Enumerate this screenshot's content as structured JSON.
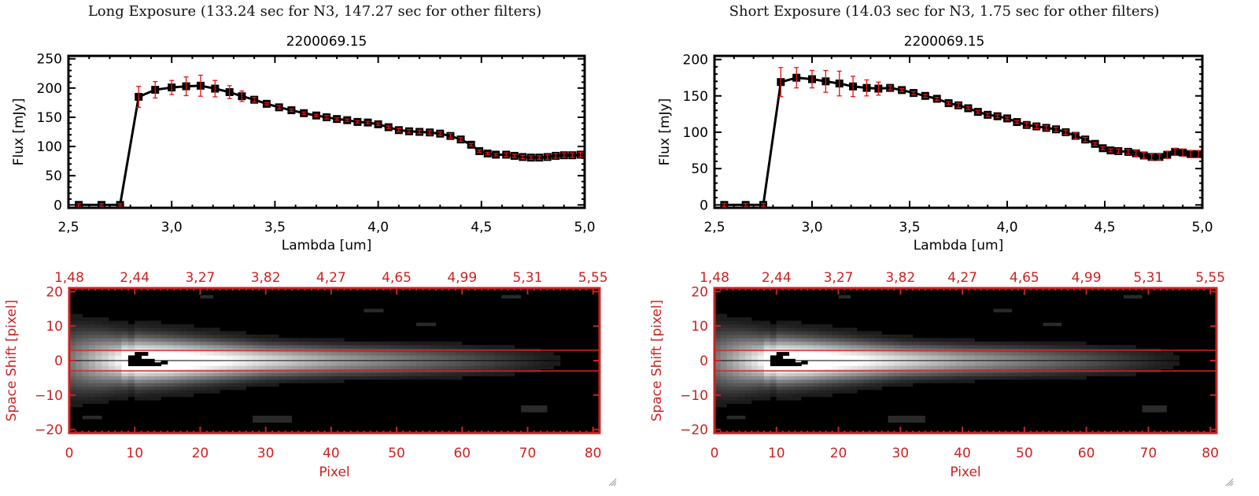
{
  "colors": {
    "axis_black": "#000000",
    "image_axis_red": "#cc2222",
    "errorbar_red": "#ee1111",
    "extraction_line_red": "#dd2222",
    "center_line": "#000000"
  },
  "panels": [
    {
      "id": "long",
      "exposure_title": "Long Exposure (133.24 sec for N3, 147.27 sec for other filters)",
      "object_id": "2200069.15"
    },
    {
      "id": "short",
      "exposure_title": "Short Exposure (14.03 sec for N3, 1.75 sec for other filters)",
      "object_id": "2200069.15"
    }
  ],
  "chart_data": [
    {
      "type": "line",
      "panel": "long",
      "title": "2200069.15",
      "xlabel": "Lambda [um]",
      "ylabel": "Flux [mJy]",
      "xlim": [
        2.5,
        5.0
      ],
      "ylim": [
        -5,
        255
      ],
      "xticks": [
        "2.5",
        "3.0",
        "3.5",
        "4.0",
        "4.5",
        "5.0"
      ],
      "yticks": [
        "0",
        "50",
        "100",
        "150",
        "200",
        "250"
      ],
      "grid": false,
      "series": [
        {
          "name": "flux",
          "marker": "square",
          "x": [
            2.55,
            2.66,
            2.75,
            2.84,
            2.92,
            3.0,
            3.07,
            3.14,
            3.21,
            3.28,
            3.34,
            3.4,
            3.46,
            3.52,
            3.58,
            3.64,
            3.7,
            3.75,
            3.8,
            3.85,
            3.9,
            3.95,
            4.0,
            4.05,
            4.1,
            4.15,
            4.2,
            4.25,
            4.3,
            4.35,
            4.4,
            4.45,
            4.49,
            4.53,
            4.57,
            4.62,
            4.66,
            4.7,
            4.74,
            4.78,
            4.82,
            4.86,
            4.9,
            4.94,
            4.98
          ],
          "y": [
            0,
            0,
            0,
            185,
            197,
            201,
            203,
            204,
            199,
            193,
            186,
            180,
            173,
            167,
            162,
            157,
            153,
            150,
            147,
            145,
            142,
            141,
            138,
            133,
            128,
            126,
            125,
            124,
            122,
            118,
            112,
            103,
            92,
            88,
            86,
            86,
            84,
            82,
            81,
            81,
            82,
            84,
            85,
            85,
            86
          ],
          "yerr": [
            2,
            2,
            2,
            18,
            14,
            12,
            16,
            18,
            14,
            11,
            9,
            4,
            2,
            3,
            2,
            2,
            2,
            3,
            2,
            2,
            2,
            2,
            2,
            2,
            3,
            3,
            3,
            3,
            3,
            4,
            3,
            2,
            2,
            2,
            2,
            3,
            3,
            3,
            3,
            3,
            4,
            4,
            4,
            4,
            4
          ]
        }
      ]
    },
    {
      "type": "heatmap",
      "panel": "long",
      "xlabel": "Pixel",
      "ylabel": "Space Shift [pixel]",
      "xlim": [
        0,
        81
      ],
      "ylim": [
        -21,
        21
      ],
      "xticks": [
        "0",
        "10",
        "20",
        "30",
        "40",
        "50",
        "60",
        "70",
        "80"
      ],
      "yticks": [
        "-20",
        "-10",
        "0",
        "10",
        "20"
      ],
      "top_axis_label_values": [
        "1.48",
        "2.44",
        "3.27",
        "3.82",
        "4.27",
        "4.65",
        "4.99",
        "5.31",
        "5.55"
      ],
      "extraction_aperture": [
        -3,
        3
      ],
      "center_line": 0,
      "description": "2D spectral image: bright trace along y=0 peaking near pixel 9-14, fading to pixel ~77"
    },
    {
      "type": "line",
      "panel": "short",
      "title": "2200069.15",
      "xlabel": "Lambda [um]",
      "ylabel": "Flux [mJy]",
      "xlim": [
        2.5,
        5.0
      ],
      "ylim": [
        -4,
        205
      ],
      "xticks": [
        "2.5",
        "3.0",
        "3.5",
        "4.0",
        "4.5",
        "5.0"
      ],
      "yticks": [
        "0",
        "50",
        "100",
        "150",
        "200"
      ],
      "grid": false,
      "series": [
        {
          "name": "flux",
          "marker": "square",
          "x": [
            2.55,
            2.66,
            2.75,
            2.84,
            2.92,
            3.0,
            3.07,
            3.14,
            3.21,
            3.28,
            3.34,
            3.4,
            3.46,
            3.52,
            3.58,
            3.64,
            3.7,
            3.75,
            3.8,
            3.85,
            3.9,
            3.95,
            4.0,
            4.05,
            4.1,
            4.15,
            4.2,
            4.25,
            4.3,
            4.35,
            4.4,
            4.45,
            4.49,
            4.53,
            4.57,
            4.62,
            4.66,
            4.7,
            4.74,
            4.78,
            4.82,
            4.86,
            4.9,
            4.94,
            4.98
          ],
          "y": [
            0,
            0,
            0,
            169,
            175,
            173,
            170,
            167,
            163,
            161,
            160,
            161,
            158,
            154,
            150,
            146,
            140,
            137,
            133,
            128,
            124,
            122,
            119,
            114,
            110,
            108,
            106,
            104,
            100,
            95,
            90,
            84,
            78,
            75,
            74,
            73,
            71,
            68,
            66,
            66,
            69,
            73,
            72,
            70,
            70
          ],
          "yerr": [
            2,
            2,
            2,
            20,
            14,
            12,
            15,
            17,
            14,
            11,
            9,
            3,
            2,
            2,
            2,
            2,
            2,
            3,
            2,
            2,
            2,
            2,
            2,
            2,
            3,
            3,
            3,
            3,
            3,
            4,
            3,
            2,
            2,
            2,
            3,
            3,
            4,
            4,
            4,
            4,
            5,
            5,
            5,
            5,
            5
          ]
        }
      ]
    },
    {
      "type": "heatmap",
      "panel": "short",
      "xlabel": "Pixel",
      "ylabel": "Space Shift [pixel]",
      "xlim": [
        0,
        81
      ],
      "ylim": [
        -21,
        21
      ],
      "xticks": [
        "0",
        "10",
        "20",
        "30",
        "40",
        "50",
        "60",
        "70",
        "80"
      ],
      "yticks": [
        "-20",
        "-10",
        "0",
        "10",
        "20"
      ],
      "top_axis_label_values": [
        "1.48",
        "2.44",
        "3.27",
        "3.82",
        "4.27",
        "4.65",
        "4.99",
        "5.31",
        "5.55"
      ],
      "extraction_aperture": [
        -3,
        3
      ],
      "center_line": 0,
      "description": "2D spectral image: bright trace along y=0 peaking near pixel 9-14, fading to pixel ~77"
    }
  ]
}
